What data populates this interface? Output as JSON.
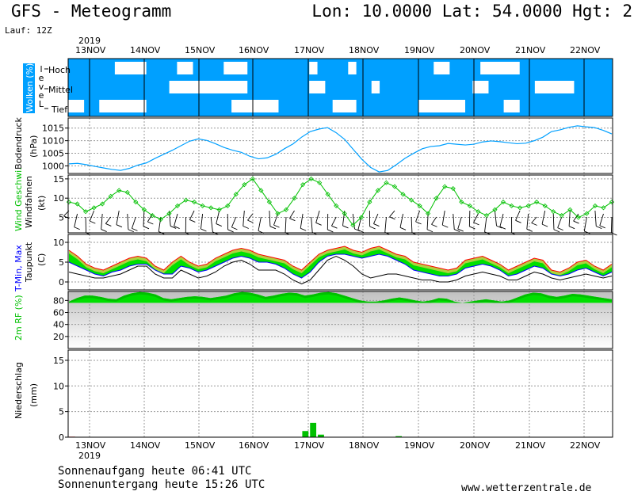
{
  "header": {
    "title": "GFS - Meteogramm",
    "coords": "Lon: 10.0000 Lat: 54.0000 Hgt: 2",
    "run": "Lauf: 12Z"
  },
  "footer": {
    "sunrise": "Sonnenaufgang heute 06:41 UTC",
    "sunset": "Sonnenuntergang heute 15:26 UTC",
    "url": "www.wetterzentrale.de"
  },
  "colors": {
    "cyan": "#00a0ff",
    "green": "#00c000",
    "brightgreen": "#00ff00",
    "red": "#ff0000",
    "blue": "#0000ff"
  },
  "chart_data": [
    {
      "type": "timeline",
      "year_label": "2019",
      "dates": [
        "13NOV",
        "14NOV",
        "15NOV",
        "16NOV",
        "17NOV",
        "18NOV",
        "19NOV",
        "20NOV",
        "21NOV",
        "22NOV"
      ]
    },
    {
      "type": "heatmap",
      "ylabel": "Wolken (%)",
      "side_label": "Level",
      "levels": [
        "Hoch",
        "Mittel",
        "Tief"
      ],
      "cloud_cover": {
        "Hoch": [
          100,
          100,
          100,
          100,
          100,
          100,
          20,
          20,
          20,
          20,
          100,
          100,
          100,
          100,
          20,
          20,
          100,
          100,
          100,
          100,
          40,
          20,
          20,
          100,
          100,
          100,
          100,
          100,
          100,
          100,
          100,
          20,
          100,
          100,
          100,
          100,
          20,
          100,
          100,
          100,
          100,
          100,
          100,
          100,
          100,
          100,
          100,
          20,
          20,
          100,
          100,
          100,
          100,
          20,
          20,
          20,
          20,
          20,
          100,
          100,
          100,
          100,
          100,
          100,
          100,
          100,
          100,
          100,
          100,
          100
        ],
        "Mittel": [
          100,
          100,
          100,
          100,
          100,
          100,
          100,
          100,
          100,
          100,
          100,
          100,
          100,
          20,
          20,
          20,
          20,
          20,
          20,
          20,
          20,
          20,
          20,
          100,
          100,
          100,
          100,
          100,
          100,
          100,
          100,
          20,
          20,
          100,
          100,
          100,
          100,
          100,
          100,
          20,
          100,
          100,
          100,
          100,
          100,
          100,
          100,
          100,
          100,
          100,
          100,
          100,
          20,
          20,
          100,
          100,
          100,
          100,
          100,
          100,
          20,
          20,
          20,
          20,
          20,
          100,
          100,
          100,
          100,
          100
        ],
        "Tief": [
          20,
          20,
          100,
          100,
          20,
          20,
          20,
          20,
          20,
          20,
          100,
          100,
          100,
          100,
          100,
          100,
          100,
          100,
          100,
          100,
          100,
          20,
          20,
          20,
          20,
          20,
          20,
          100,
          100,
          100,
          100,
          100,
          100,
          100,
          20,
          20,
          20,
          100,
          100,
          100,
          100,
          100,
          100,
          100,
          100,
          20,
          20,
          20,
          20,
          20,
          20,
          100,
          100,
          100,
          100,
          100,
          20,
          20,
          100,
          100,
          100,
          100,
          100,
          100,
          100,
          100,
          100,
          100,
          100,
          100
        ]
      }
    },
    {
      "type": "line",
      "ylabel": "Bodendruck",
      "unit": "(hPa)",
      "yticks": [
        1000,
        1005,
        1010,
        1015
      ],
      "ylim": [
        997,
        1019
      ],
      "values": [
        1000.8,
        1001,
        1000.5,
        999.8,
        999.2,
        998.6,
        998.2,
        999,
        1000.3,
        1001.2,
        1003,
        1004.6,
        1006.2,
        1008,
        1009.8,
        1010.7,
        1010.1,
        1008.8,
        1007.3,
        1006.2,
        1005.4,
        1003.8,
        1002.8,
        1003.2,
        1004.6,
        1006.8,
        1008.7,
        1011.4,
        1013.6,
        1014.6,
        1015.2,
        1013.2,
        1010.5,
        1006.5,
        1002.6,
        999.4,
        997.6,
        998.2,
        1000.5,
        1003,
        1005,
        1006.8,
        1007.7,
        1008,
        1008.9,
        1008.6,
        1008.3,
        1008.6,
        1009.5,
        1009.9,
        1009.6,
        1009.2,
        1008.8,
        1009,
        1010,
        1011.4,
        1013.6,
        1014.3,
        1015.3,
        1015.9,
        1015.5,
        1015.2,
        1014.1,
        1012.7
      ]
    },
    {
      "type": "line",
      "ylabel": "Wind Geschwi.",
      "ylabel2": "Windfahnen",
      "unit": "(kt)",
      "yticks": [
        5,
        10,
        15
      ],
      "ylim": [
        1,
        16
      ],
      "values": [
        9,
        8.5,
        6.5,
        7.5,
        8.5,
        10.5,
        12,
        11.5,
        9,
        7,
        5.5,
        4.5,
        6,
        8,
        9.5,
        9,
        8,
        7.5,
        7,
        8,
        11,
        13.5,
        15,
        12,
        9,
        6,
        7,
        10,
        13.5,
        15,
        14,
        11,
        8,
        6,
        3,
        5,
        9,
        12,
        14,
        13,
        11,
        9.5,
        8,
        6,
        10,
        13,
        12.5,
        9,
        8,
        6.5,
        5.5,
        7,
        9,
        8,
        7.5,
        8,
        9,
        8,
        6.5,
        5.5,
        7,
        5,
        6,
        8,
        7.5,
        9
      ]
    },
    {
      "type": "area",
      "ylabel": "T-Min, Max",
      "ylabel2": "Taupunkt",
      "unit": "(C)",
      "yticks": [
        0,
        5,
        10
      ],
      "ylim": [
        -2,
        12
      ],
      "tmax": [
        8,
        6.5,
        4.5,
        3.5,
        3,
        4,
        5,
        6,
        6.5,
        6,
        4,
        3,
        5,
        6.5,
        5,
        4,
        4.5,
        6,
        7,
        8,
        8.5,
        8,
        7,
        6.5,
        6,
        5.5,
        4,
        3,
        5,
        7,
        8,
        8.5,
        9,
        8,
        7.5,
        8.5,
        9,
        8,
        7,
        6.5,
        5,
        4.5,
        4,
        3.5,
        3,
        3.5,
        5.5,
        6,
        6.5,
        5.5,
        4.5,
        3,
        4,
        5,
        6,
        5.5,
        3,
        2.5,
        3.5,
        5,
        5.5,
        4,
        3,
        4.5
      ],
      "tmin": [
        5,
        4,
        3,
        2,
        1.5,
        2.5,
        3,
        4,
        4.5,
        4.5,
        3,
        2,
        2,
        4,
        3.5,
        2.5,
        3,
        4,
        5,
        6,
        6.5,
        6,
        5,
        5,
        4.5,
        3.5,
        2,
        1,
        2.5,
        5,
        6.5,
        7,
        7,
        6.5,
        6,
        6.5,
        7,
        6.5,
        5.5,
        4.5,
        3,
        2.5,
        2,
        1.5,
        1.5,
        2,
        3.5,
        4,
        4.5,
        4,
        3,
        1.5,
        2,
        3,
        4,
        3.5,
        2,
        1.5,
        2,
        3,
        3.5,
        2.5,
        1.5,
        2.5
      ],
      "dewpoint": [
        2.5,
        2,
        1.5,
        1,
        1,
        1.5,
        2,
        3,
        4,
        4,
        2,
        1,
        1,
        3,
        2,
        1,
        1.5,
        2.5,
        4,
        5,
        5.5,
        4.5,
        3,
        3,
        3,
        2,
        0.5,
        -0.5,
        0.5,
        3,
        5.5,
        6.5,
        5.5,
        4,
        2,
        1,
        1.5,
        2,
        2,
        1.5,
        1,
        0.5,
        0.5,
        0,
        0,
        0.5,
        1.5,
        2,
        2.5,
        2,
        1.5,
        0.5,
        0.5,
        1.5,
        2.5,
        2,
        1,
        0.5,
        1,
        1.5,
        2,
        1.5,
        1,
        1.5
      ]
    },
    {
      "type": "area",
      "ylabel": "2m RF (%)",
      "yticks": [
        20,
        40,
        60,
        80
      ],
      "ylim": [
        0,
        95
      ],
      "values": [
        78,
        84,
        88,
        88,
        86,
        83,
        82,
        88,
        92,
        94,
        93,
        90,
        84,
        82,
        84,
        86,
        87,
        86,
        84,
        86,
        88,
        92,
        94,
        93,
        90,
        86,
        88,
        91,
        93,
        92,
        88,
        90,
        93,
        94,
        92,
        88,
        84,
        80,
        78,
        78,
        80,
        83,
        85,
        83,
        80,
        78,
        80,
        84,
        83,
        78,
        76,
        78,
        80,
        82,
        80,
        78,
        80,
        85,
        90,
        93,
        92,
        88,
        86,
        88,
        91,
        90,
        88,
        86,
        84,
        82
      ]
    },
    {
      "type": "bar",
      "ylabel": "Niederschlag",
      "unit": "(mm)",
      "yticks": [
        0,
        5,
        10,
        15
      ],
      "ylim": [
        0,
        17
      ],
      "values": [
        0.1,
        0,
        0,
        0,
        0,
        0,
        0,
        0,
        0,
        0,
        0,
        0,
        0,
        0,
        0,
        0,
        0,
        0,
        0,
        0,
        0,
        0,
        0,
        0,
        0,
        0,
        0,
        0,
        0,
        0,
        1.2,
        2.8,
        0.5,
        0,
        0,
        0,
        0,
        0,
        0,
        0,
        0,
        0,
        0.2,
        0,
        0,
        0,
        0,
        0,
        0,
        0,
        0,
        0,
        0,
        0,
        0,
        0,
        0,
        0,
        0,
        0,
        0,
        0,
        0,
        0,
        0,
        0,
        0,
        0,
        0,
        0
      ]
    }
  ]
}
